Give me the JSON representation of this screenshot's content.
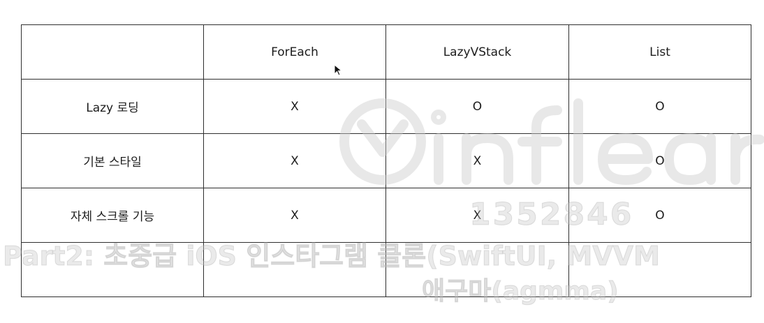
{
  "table": {
    "header": [
      "",
      "ForEach",
      "LazyVStack",
      "List"
    ],
    "rows": [
      [
        "Lazy 로딩",
        "X",
        "O",
        "O"
      ],
      [
        "기본 스타일",
        "X",
        "X",
        "O"
      ],
      [
        "자체 스크롤 기능",
        "X",
        "X",
        "O"
      ],
      [
        "",
        "",
        "",
        ""
      ]
    ]
  },
  "watermark": {
    "logo_icon": "inflearn-logo-icon",
    "number": "1352846",
    "course": "Part2: 초중급 iOS 인스타그램 클론(SwiftUI, MVVM",
    "author": "애구마(agmma)"
  }
}
